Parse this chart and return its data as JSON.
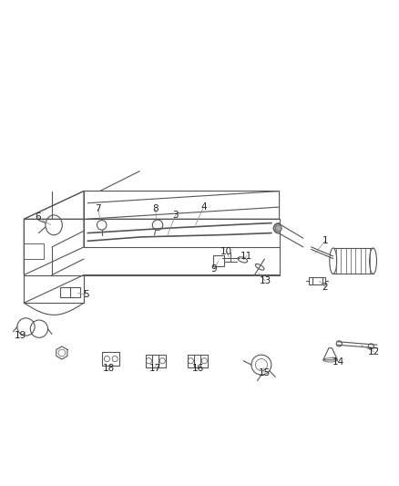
{
  "background_color": "#ffffff",
  "line_color": "#555555",
  "label_color": "#222222",
  "label_fontsize": 7.5,
  "leader_color": "#888888"
}
